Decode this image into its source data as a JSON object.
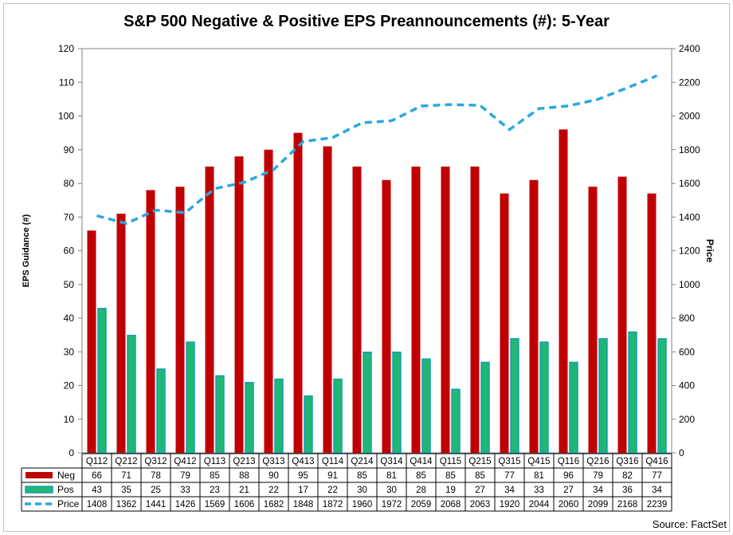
{
  "chart_data": {
    "type": "bar",
    "title": "S&P 500 Negative & Positive EPS Preannouncements (#): 5-Year",
    "categories": [
      "Q112",
      "Q212",
      "Q312",
      "Q412",
      "Q113",
      "Q213",
      "Q313",
      "Q413",
      "Q114",
      "Q214",
      "Q314",
      "Q414",
      "Q115",
      "Q215",
      "Q315",
      "Q415",
      "Q116",
      "Q216",
      "Q316",
      "Q416"
    ],
    "series": [
      {
        "name": "Neg",
        "type": "bar",
        "axis": "left",
        "color": "#c00000",
        "values": [
          66,
          71,
          78,
          79,
          85,
          88,
          90,
          95,
          91,
          85,
          81,
          85,
          85,
          85,
          77,
          81,
          96,
          79,
          82,
          77
        ]
      },
      {
        "name": "Pos",
        "type": "bar",
        "axis": "left",
        "color": "#1fb873",
        "border": "#1a9bb8",
        "values": [
          43,
          35,
          25,
          33,
          23,
          21,
          22,
          17,
          22,
          30,
          30,
          28,
          19,
          27,
          34,
          33,
          27,
          34,
          36,
          34
        ]
      },
      {
        "name": "Price",
        "type": "line",
        "axis": "right",
        "color": "#29a8e0",
        "values": [
          1408,
          1362,
          1441,
          1426,
          1569,
          1606,
          1682,
          1848,
          1872,
          1960,
          1972,
          2059,
          2068,
          2063,
          1920,
          2044,
          2060,
          2099,
          2168,
          2239
        ]
      }
    ],
    "ylabel": "EPS Guidance (#)",
    "ylabel_right": "Price",
    "ylim": [
      0,
      120
    ],
    "yticks": [
      0,
      10,
      20,
      30,
      40,
      50,
      60,
      70,
      80,
      90,
      100,
      110,
      120
    ],
    "ylim_right": [
      0,
      2400
    ],
    "yticks_right": [
      0,
      200,
      400,
      600,
      800,
      1000,
      1200,
      1400,
      1600,
      1800,
      2000,
      2200,
      2400
    ],
    "grid": false,
    "legend": "data-table-bottom",
    "source": "Source: FactSet"
  }
}
